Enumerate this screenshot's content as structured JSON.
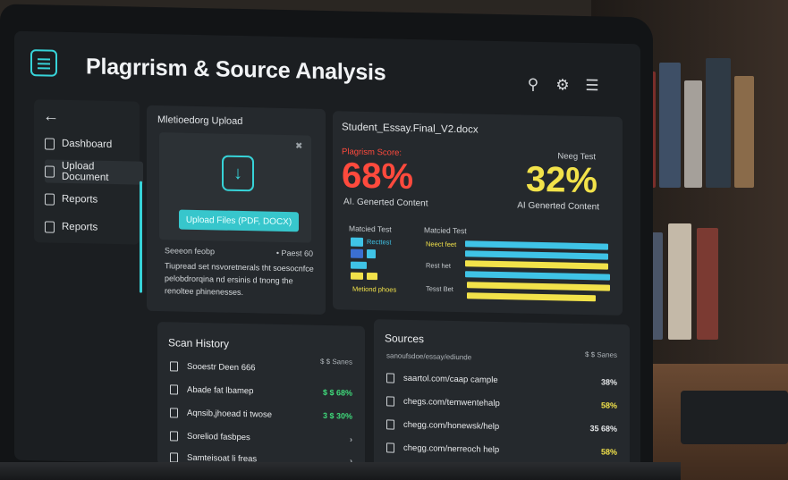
{
  "header": {
    "title": "Plagrrism & Source Analysis",
    "icons": [
      "search-icon",
      "user-icon",
      "menu-icon"
    ]
  },
  "sidebar": {
    "items": [
      {
        "label": "Dashboard",
        "icon": "dashboard-icon"
      },
      {
        "label": "Upload Document",
        "icon": "document-icon"
      },
      {
        "label": "Reports",
        "icon": "report-icon"
      },
      {
        "label": "Reports",
        "icon": "report-icon"
      }
    ]
  },
  "upload": {
    "title": "Mletioedorg Upload",
    "button": "Upload Files (PDF, DOCX)",
    "scan_label": "Seeeon feobp",
    "scan_value": "• Paest 60",
    "description": "Tiupread set nsvoretnerals tht soesocnfce pelobdrorqina nd ersinis d tnong the renoltee phinenesses."
  },
  "analysis": {
    "filename": "Student_Essay.Final_V2.docx",
    "plagiarism": {
      "label": "Plagrism Score:",
      "value": "68%",
      "sub": "AI. Generted Content"
    },
    "ai": {
      "label": "Neeg Test",
      "value": "32%",
      "sub": "AI Generted Content"
    },
    "matched_label_1": "Matcied Test",
    "matched_label_2": "Matcied Test",
    "legend_1": "Recttest",
    "legend_2": "Metiond phoes",
    "row_labels": [
      "Neect feet",
      "Rest het",
      "Tesst Bet"
    ],
    "colors": {
      "cyan": "#3fc3e6",
      "blue": "#3b6fd1",
      "yellow": "#f2e24a",
      "red": "#ff4a3d"
    }
  },
  "history": {
    "title": "Scan History",
    "count": "$ $ Sanes",
    "rows": [
      {
        "name": "Sooestr Deen 666",
        "value": ""
      },
      {
        "name": "Abade fat lbamep",
        "value": "$ $ 68%"
      },
      {
        "name": "Aqnsib,jhoead ti twose",
        "value": "3 $ 30%"
      },
      {
        "name": "Soreliod fasbpes",
        "value": "›"
      },
      {
        "name": "Samteisoat li freas",
        "value": "›"
      }
    ]
  },
  "sources": {
    "title": "Sources",
    "path": "sanoufsdoe/essay/ediunde",
    "count": "$ $ Sanes",
    "rows": [
      {
        "url": "saartol.com/caap cample",
        "value": "38%"
      },
      {
        "url": "chegs.com/temwentehalp",
        "value": "58%"
      },
      {
        "url": "chegg.com/honewsk/help",
        "value": "35 68%"
      },
      {
        "url": "chegg.com/nerreoch help",
        "value": "58%"
      }
    ]
  }
}
